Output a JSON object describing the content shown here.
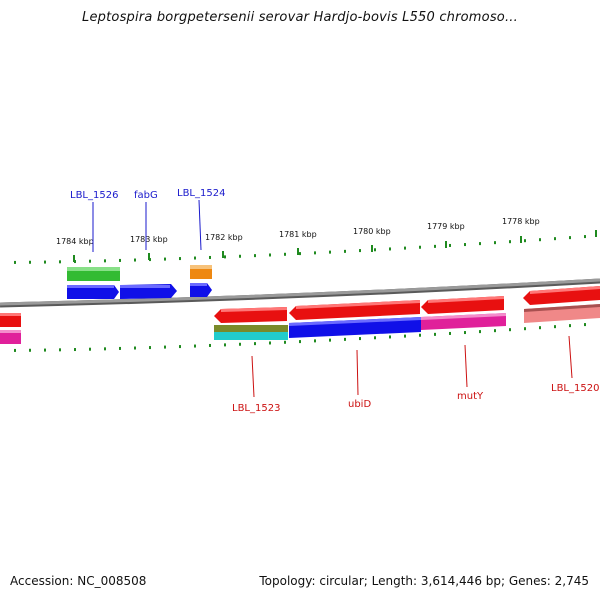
{
  "title": "Leptospira borgpetersenii serovar Hardjo-bovis L550 chromoso...",
  "footer": {
    "accession": "Accession: NC_008508",
    "topology": "Topology: circular; Length: 3,614,446 bp; Genes: 2,745"
  },
  "colors": {
    "backbone": "#8a8a8a",
    "tick": "#1f8a1f",
    "forward_label": "#1a1acc",
    "reverse_label": "#cc1111"
  },
  "ticks": [
    {
      "label": "1784 kbp"
    },
    {
      "label": "1783 kbp"
    },
    {
      "label": "1782 kbp"
    },
    {
      "label": "1781 kbp"
    },
    {
      "label": "1780 kbp"
    },
    {
      "label": "1779 kbp"
    },
    {
      "label": "1778 kbp"
    }
  ],
  "gene_labels": {
    "forward": [
      {
        "name": "LBL_1526"
      },
      {
        "name": "fabG"
      },
      {
        "name": "LBL_1524"
      }
    ],
    "reverse": [
      {
        "name": "LBL_1523"
      },
      {
        "name": "ubiD"
      },
      {
        "name": "mutY"
      },
      {
        "name": "LBL_1520"
      }
    ]
  },
  "feature_colors": {
    "cds_blue": "#1010e8",
    "cds_red": "#e81010",
    "gene_green": "#33bb33",
    "gene_orange": "#ee8811",
    "gene_olive": "#7a8a2a",
    "gene_cyan": "#22cccc",
    "gene_magenta": "#e0209a",
    "gene_pink": "#f08888"
  }
}
